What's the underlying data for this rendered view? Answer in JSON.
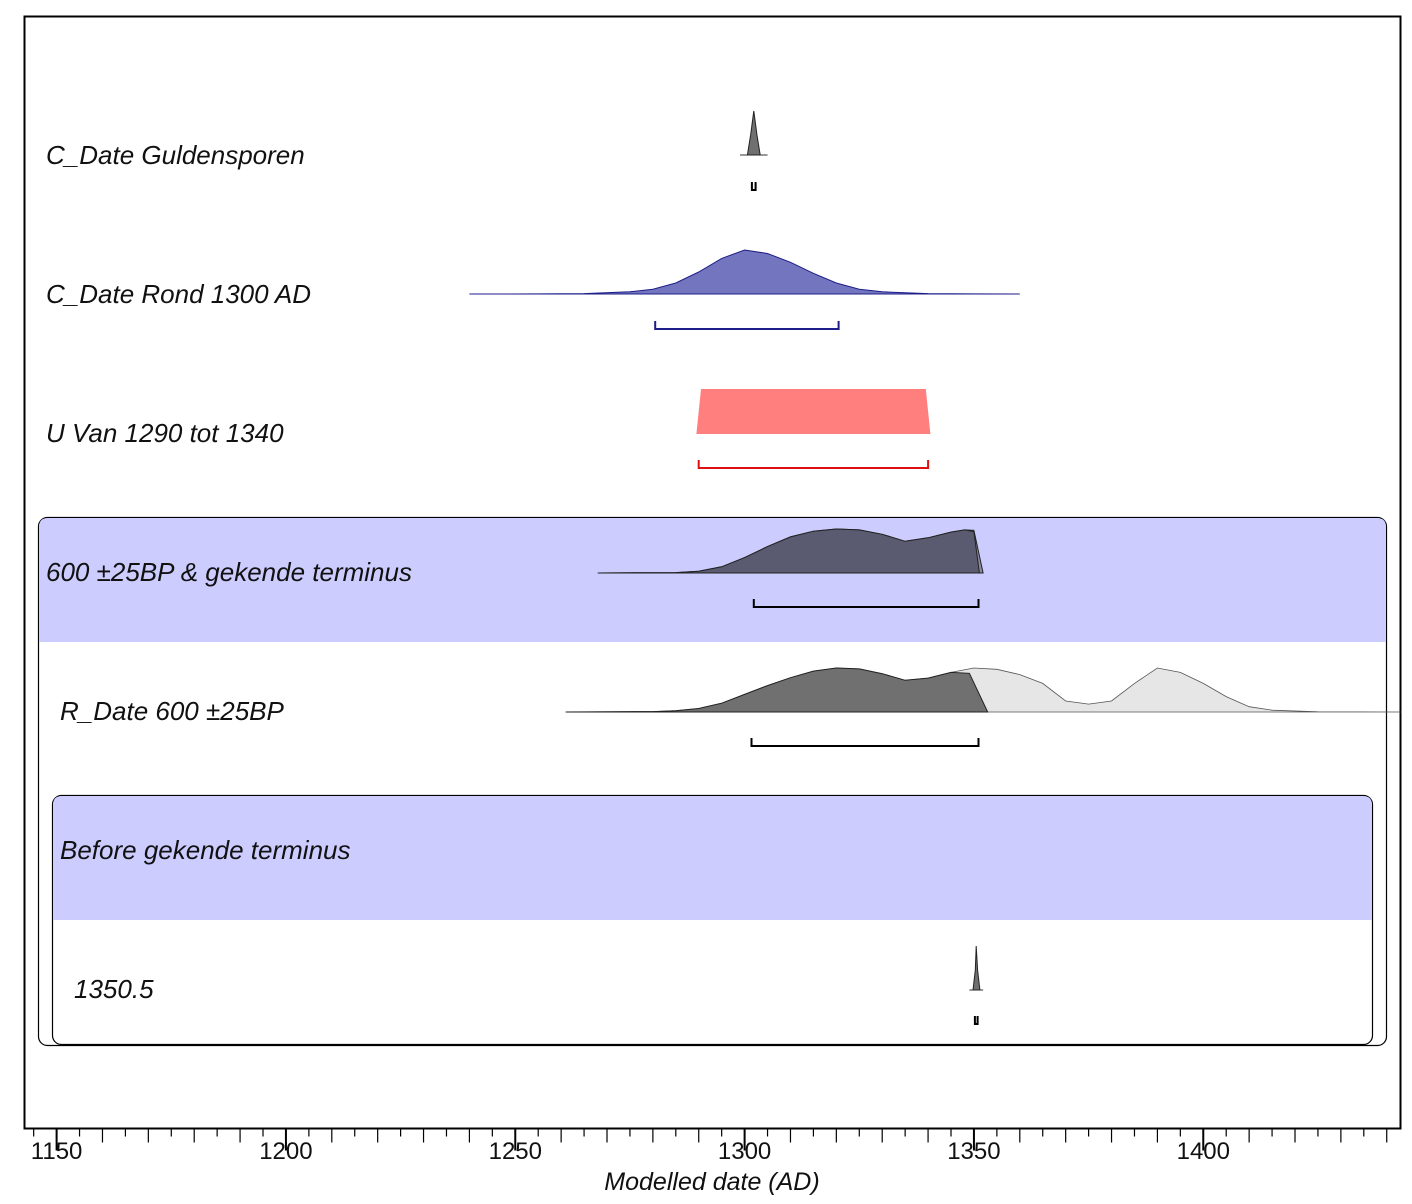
{
  "chart_data": {
    "type": "area",
    "xlabel": "Modelled date (AD)",
    "xlim": [
      1143,
      1443
    ],
    "x_ticks": [
      1150,
      1200,
      1250,
      1300,
      1350,
      1400
    ],
    "x_tick_labels": [
      "1150",
      "1200",
      "1250",
      "1300",
      "1350",
      "1400"
    ],
    "minor_tick_step": 5,
    "colors": {
      "group_band": "#ccccff",
      "c_date_rond": "#7375be",
      "c_date_rond_range": "#1e1e8a",
      "uniform": "#ff7f7f",
      "uniform_range": "#dd1111",
      "posterior_dark": "#5a5a70",
      "posterior": "#707070",
      "prior_light": "#e6e6e6"
    },
    "rows": [
      {
        "label": "C_Date Guldensporen",
        "distribution": [
          [
            1300.6,
            0
          ],
          [
            1301.3,
            0.45
          ],
          [
            1302,
            1
          ],
          [
            1302.7,
            0.45
          ],
          [
            1303.4,
            0
          ]
        ],
        "baseline": [
          1299,
          1305
        ],
        "range": [
          1301.6,
          1302.4
        ]
      },
      {
        "label": "C_Date Rond 1300 AD",
        "distribution": [
          [
            1240,
            0
          ],
          [
            1255,
            0.002
          ],
          [
            1265,
            0.01
          ],
          [
            1275,
            0.05
          ],
          [
            1280,
            0.11
          ],
          [
            1285,
            0.25
          ],
          [
            1290,
            0.5
          ],
          [
            1295,
            0.81
          ],
          [
            1300,
            1
          ],
          [
            1305,
            0.92
          ],
          [
            1310,
            0.72
          ],
          [
            1315,
            0.47
          ],
          [
            1320,
            0.25
          ],
          [
            1325,
            0.11
          ],
          [
            1330,
            0.05
          ],
          [
            1340,
            0.01
          ],
          [
            1350,
            0.002
          ],
          [
            1360,
            0
          ]
        ],
        "range": [
          1280.5,
          1320.5
        ]
      },
      {
        "label": "U Van 1290 tot 1340",
        "distribution": [
          [
            1289.5,
            0
          ],
          [
            1290.5,
            1
          ],
          [
            1339.5,
            1
          ],
          [
            1340.5,
            0
          ]
        ],
        "range": [
          1290,
          1340
        ]
      },
      {
        "label": "600 ±25BP & gekende terminus",
        "group": true,
        "distribution": [
          [
            1268,
            0
          ],
          [
            1285,
            0.01
          ],
          [
            1290,
            0.04
          ],
          [
            1295,
            0.14
          ],
          [
            1300,
            0.35
          ],
          [
            1305,
            0.6
          ],
          [
            1310,
            0.82
          ],
          [
            1315,
            0.95
          ],
          [
            1320,
            1
          ],
          [
            1325,
            0.98
          ],
          [
            1330,
            0.88
          ],
          [
            1335,
            0.72
          ],
          [
            1340,
            0.8
          ],
          [
            1345,
            0.93
          ],
          [
            1348,
            0.98
          ],
          [
            1350,
            0.94
          ],
          [
            1351.2,
            0
          ]
        ],
        "prior": [
          [
            1268,
            0
          ],
          [
            1285,
            0.01
          ],
          [
            1290,
            0.04
          ],
          [
            1295,
            0.14
          ],
          [
            1300,
            0.35
          ],
          [
            1305,
            0.6
          ],
          [
            1310,
            0.82
          ],
          [
            1315,
            0.95
          ],
          [
            1320,
            1
          ],
          [
            1325,
            0.98
          ],
          [
            1330,
            0.88
          ],
          [
            1335,
            0.72
          ],
          [
            1340,
            0.8
          ],
          [
            1345,
            0.93
          ],
          [
            1348,
            0.98
          ],
          [
            1350,
            0.97
          ],
          [
            1352,
            0
          ]
        ],
        "range": [
          1302,
          1351
        ]
      },
      {
        "label": "R_Date 600 ±25BP",
        "distribution": [
          [
            1261,
            0
          ],
          [
            1280,
            0.01
          ],
          [
            1285,
            0.03
          ],
          [
            1290,
            0.08
          ],
          [
            1295,
            0.2
          ],
          [
            1300,
            0.4
          ],
          [
            1305,
            0.6
          ],
          [
            1310,
            0.78
          ],
          [
            1315,
            0.93
          ],
          [
            1320,
            1
          ],
          [
            1325,
            0.98
          ],
          [
            1330,
            0.87
          ],
          [
            1335,
            0.72
          ],
          [
            1340,
            0.77
          ],
          [
            1345,
            0.9
          ],
          [
            1349,
            0.88
          ],
          [
            1353,
            0
          ]
        ],
        "prior": [
          [
            1261,
            0
          ],
          [
            1280,
            0.01
          ],
          [
            1285,
            0.03
          ],
          [
            1290,
            0.08
          ],
          [
            1295,
            0.2
          ],
          [
            1300,
            0.4
          ],
          [
            1305,
            0.6
          ],
          [
            1310,
            0.78
          ],
          [
            1315,
            0.93
          ],
          [
            1320,
            1
          ],
          [
            1325,
            0.98
          ],
          [
            1330,
            0.87
          ],
          [
            1335,
            0.72
          ],
          [
            1340,
            0.77
          ],
          [
            1345,
            0.9
          ],
          [
            1350,
            1
          ],
          [
            1355,
            0.97
          ],
          [
            1360,
            0.85
          ],
          [
            1365,
            0.65
          ],
          [
            1370,
            0.25
          ],
          [
            1375,
            0.18
          ],
          [
            1380,
            0.25
          ],
          [
            1385,
            0.65
          ],
          [
            1390,
            1
          ],
          [
            1395,
            0.9
          ],
          [
            1400,
            0.65
          ],
          [
            1405,
            0.35
          ],
          [
            1410,
            0.12
          ],
          [
            1415,
            0.04
          ],
          [
            1425,
            0.005
          ],
          [
            1443,
            0
          ]
        ],
        "range": [
          1301.5,
          1351
        ]
      },
      {
        "label": "Before gekende terminus",
        "group": true
      },
      {
        "label": "1350.5",
        "distribution": [
          [
            1349.8,
            0
          ],
          [
            1350.3,
            0.45
          ],
          [
            1350.5,
            1
          ],
          [
            1350.8,
            0.45
          ],
          [
            1351.3,
            0
          ]
        ],
        "baseline": [
          1349,
          1352
        ],
        "range": [
          1350.2,
          1350.8
        ]
      }
    ]
  }
}
